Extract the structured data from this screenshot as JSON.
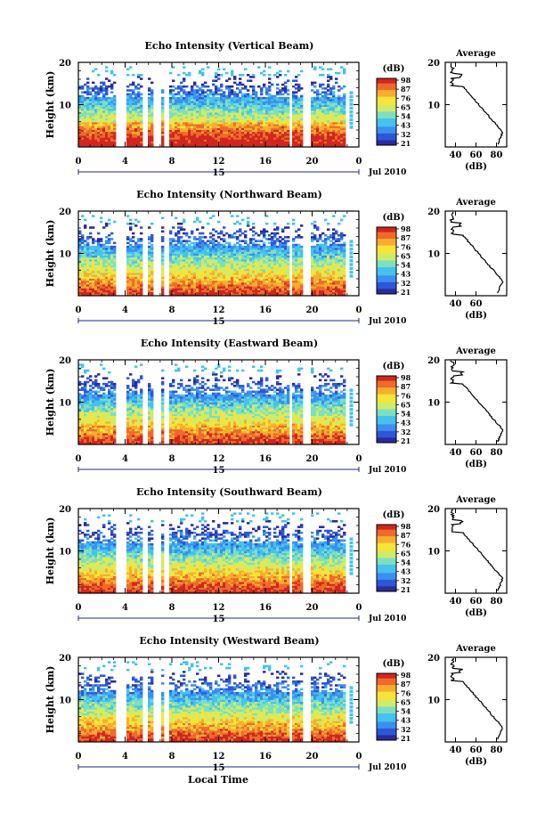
{
  "chart_data": [
    {
      "type": "heatmap",
      "title": "Echo Intensity (Vertical Beam)",
      "ylabel": "Height (km)",
      "ylim": [
        0,
        20
      ],
      "yticks": [
        "20",
        "10"
      ],
      "xticks": [
        "0",
        "4",
        "8",
        "12",
        "16",
        "20",
        "0"
      ],
      "date_marker": "15",
      "date_label": "Jul 2010",
      "colorbar": {
        "unit": "(dB)",
        "labels": [
          "98",
          "87",
          "76",
          "65",
          "54",
          "43",
          "32",
          "21"
        ]
      },
      "profile": {
        "title": "Average",
        "xlabel": "(dB)",
        "xticks": [
          "40",
          "60",
          "80"
        ],
        "yticks": [
          "20",
          "10"
        ],
        "ylim": [
          0,
          20
        ],
        "xlim": [
          30,
          90
        ]
      }
    },
    {
      "type": "heatmap",
      "title": "Echo Intensity (Northward Beam)",
      "ylabel": "Height (km)",
      "ylim": [
        0,
        20
      ],
      "yticks": [
        "20",
        "10"
      ],
      "xticks": [
        "0",
        "4",
        "8",
        "12",
        "16",
        "20",
        "0"
      ],
      "date_marker": "15",
      "date_label": "Jul 2010",
      "colorbar": {
        "unit": "(dB)",
        "labels": [
          "98",
          "87",
          "76",
          "65",
          "54",
          "43",
          "32",
          "21"
        ]
      },
      "profile": {
        "title": "Average",
        "xlabel": "(dB)",
        "xticks": [
          "40",
          "60"
        ],
        "yticks": [
          "20",
          "10"
        ],
        "ylim": [
          0,
          20
        ],
        "xlim": [
          30,
          90
        ]
      }
    },
    {
      "type": "heatmap",
      "title": "Echo Intensity (Eastward Beam)",
      "ylabel": "Height (km)",
      "ylim": [
        0,
        20
      ],
      "yticks": [
        "20",
        "10"
      ],
      "xticks": [
        "0",
        "4",
        "8",
        "12",
        "16",
        "20",
        "0"
      ],
      "date_marker": "15",
      "date_label": "Jul 2010",
      "colorbar": {
        "unit": "(dB)",
        "labels": [
          "98",
          "87",
          "76",
          "65",
          "54",
          "43",
          "32",
          "21"
        ]
      },
      "profile": {
        "title": "Average",
        "xlabel": "(dB)",
        "xticks": [
          "40",
          "60",
          "80"
        ],
        "yticks": [
          "20",
          "10"
        ],
        "ylim": [
          0,
          20
        ],
        "xlim": [
          30,
          90
        ]
      }
    },
    {
      "type": "heatmap",
      "title": "Echo Intensity (Southward Beam)",
      "ylabel": "Height (km)",
      "ylim": [
        0,
        20
      ],
      "yticks": [
        "20",
        "10"
      ],
      "xticks": [
        "0",
        "4",
        "8",
        "12",
        "16",
        "20",
        "0"
      ],
      "date_marker": "15",
      "date_label": "Jul 2010",
      "colorbar": {
        "unit": "(dB)",
        "labels": [
          "98",
          "87",
          "76",
          "65",
          "54",
          "43",
          "32",
          "21"
        ]
      },
      "profile": {
        "title": "Average",
        "xlabel": "(dB)",
        "xticks": [
          "40",
          "60",
          "80"
        ],
        "yticks": [
          "20",
          "10"
        ],
        "ylim": [
          0,
          20
        ],
        "xlim": [
          30,
          90
        ]
      }
    },
    {
      "type": "heatmap",
      "title": "Echo Intensity (Westward Beam)",
      "ylabel": "Height (km)",
      "ylim": [
        0,
        20
      ],
      "yticks": [
        "20",
        "10"
      ],
      "xticks": [
        "0",
        "4",
        "8",
        "12",
        "16",
        "20",
        "0"
      ],
      "date_marker": "15",
      "date_label": "Jul 2010",
      "colorbar": {
        "unit": "(dB)",
        "labels": [
          "98",
          "87",
          "76",
          "65",
          "54",
          "43",
          "32",
          "21"
        ]
      },
      "profile": {
        "title": "Average",
        "xlabel": "(dB)",
        "xticks": [
          "40",
          "60",
          "80"
        ],
        "yticks": [
          "20",
          "10"
        ],
        "ylim": [
          0,
          20
        ],
        "xlim": [
          30,
          90
        ]
      }
    }
  ],
  "shared": {
    "xlabel": "Local Time",
    "xlim_hours": [
      0,
      24
    ],
    "data_gaps_hours": [
      [
        3.3,
        4.0
      ],
      [
        5.4,
        5.9
      ],
      [
        6.5,
        7.0
      ],
      [
        7.4,
        7.8
      ],
      [
        17.5,
        17.7
      ],
      [
        18.0,
        18.2
      ],
      [
        19.2,
        19.9
      ]
    ],
    "colormap": [
      "#2a2b9c",
      "#2d57d8",
      "#3a8ff0",
      "#45c2ee",
      "#7ce0c0",
      "#cdec6a",
      "#f6e43a",
      "#f8ad2e",
      "#ef6a2a",
      "#d0261f"
    ]
  }
}
